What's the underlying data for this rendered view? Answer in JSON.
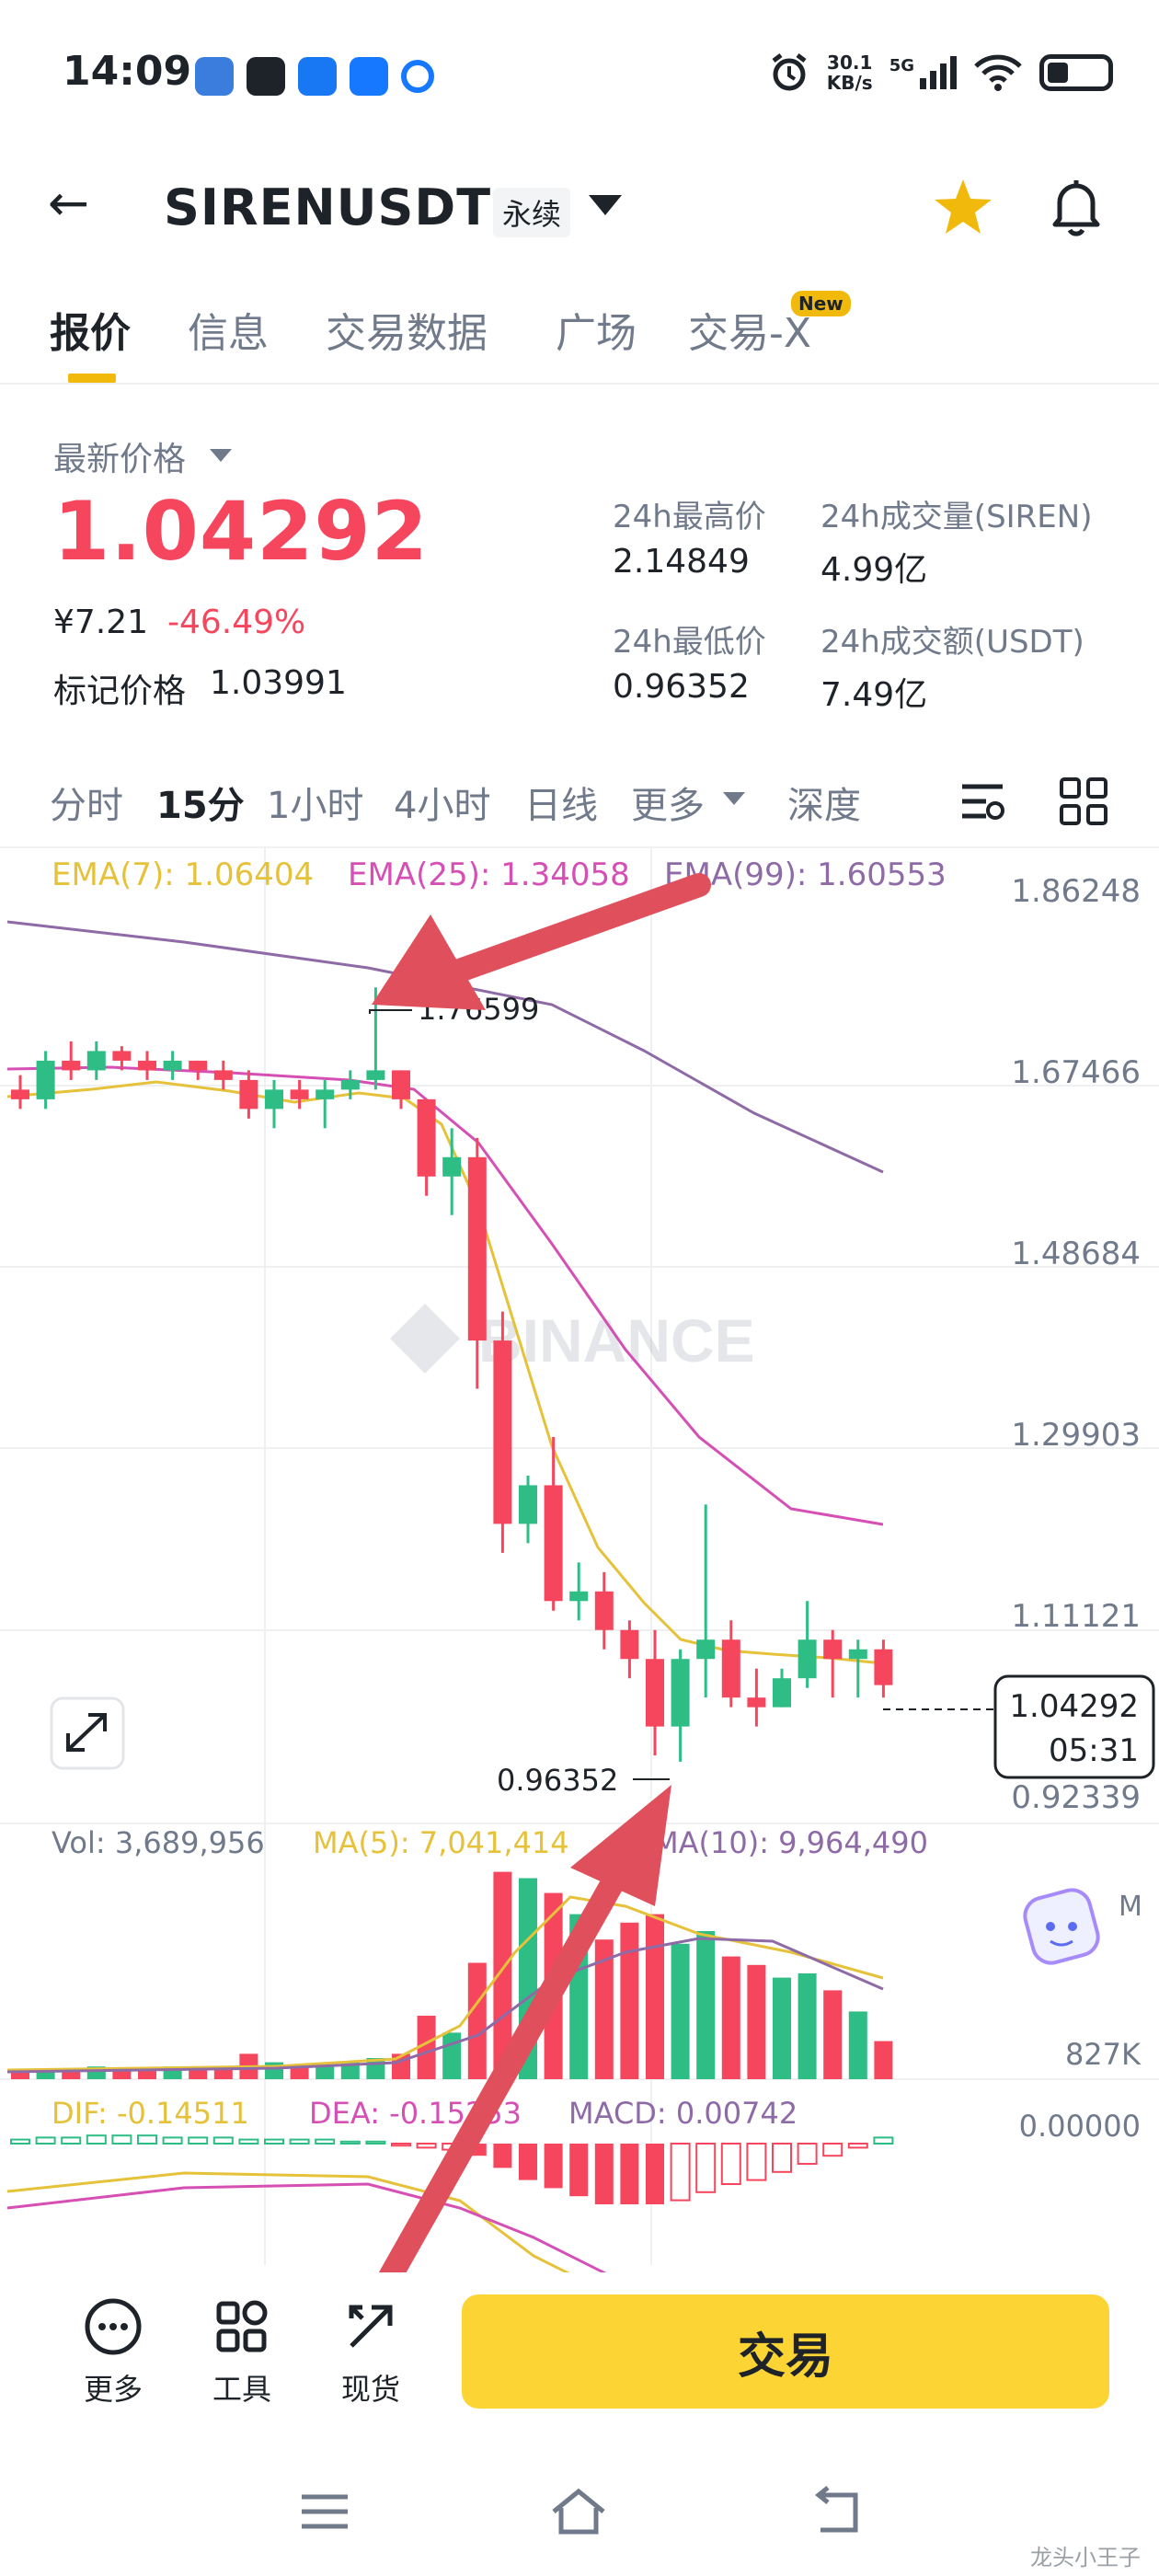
{
  "status_bar": {
    "time": "14:09",
    "net_speed_value": "30.1",
    "net_speed_unit": "KB/s",
    "network": "5G"
  },
  "header": {
    "symbol": "SIRENUSDT",
    "contract_type": "永续"
  },
  "tabs": [
    {
      "label": "报价",
      "active": true
    },
    {
      "label": "信息",
      "active": false
    },
    {
      "label": "交易数据",
      "active": false
    },
    {
      "label": "广场",
      "active": false
    },
    {
      "label": "交易-X",
      "active": false
    }
  ],
  "tab_badge": "New",
  "price": {
    "latest_label": "最新价格",
    "last_price": "1.04292",
    "cny_price": "¥7.21",
    "change_pct": "-46.49%",
    "mark_label": "标记价格",
    "mark_price": "1.03991"
  },
  "stats": {
    "high_label": "24h最高价",
    "high_value": "2.14849",
    "vol_label": "24h成交量(SIREN)",
    "vol_value": "4.99亿",
    "low_label": "24h最低价",
    "low_value": "0.96352",
    "turnover_label": "24h成交额(USDT)",
    "turnover_value": "7.49亿"
  },
  "timeframes": [
    {
      "label": "分时",
      "active": false
    },
    {
      "label": "15分",
      "active": true
    },
    {
      "label": "1小时",
      "active": false
    },
    {
      "label": "4小时",
      "active": false
    },
    {
      "label": "日线",
      "active": false
    },
    {
      "label": "更多",
      "active": false
    },
    {
      "label": "深度",
      "active": false
    }
  ],
  "chart_data": {
    "type": "candlestick",
    "indicators_main": {
      "ema7": "EMA(7): 1.06404",
      "ema25": "EMA(25): 1.34058",
      "ema99": "EMA(99): 1.60553"
    },
    "y_ticks": [
      "1.86248",
      "1.67466",
      "1.48684",
      "1.29903",
      "1.11121",
      "0.92339"
    ],
    "high_marker": "1.76599",
    "low_marker": "0.96352",
    "last_price_tag": "1.04292",
    "countdown": "05:31",
    "watermark": "BINANCE",
    "volume": {
      "label": "Vol: 3,689,956",
      "ma5": "MA(5): 7,041,414",
      "ma10": "MA(10): 9,964,490",
      "axis_label": "827K"
    },
    "macd": {
      "dif": "DIF: -0.14511",
      "dea": "DEA: -0.15253",
      "macd": "MACD: 0.00742",
      "axis_label": "0.00000"
    },
    "candles": [
      {
        "o": 1.66,
        "h": 1.675,
        "l": 1.64,
        "c": 1.65
      },
      {
        "o": 1.65,
        "h": 1.7,
        "l": 1.64,
        "c": 1.69
      },
      {
        "o": 1.69,
        "h": 1.71,
        "l": 1.67,
        "c": 1.68
      },
      {
        "o": 1.68,
        "h": 1.71,
        "l": 1.67,
        "c": 1.7
      },
      {
        "o": 1.7,
        "h": 1.705,
        "l": 1.68,
        "c": 1.69
      },
      {
        "o": 1.69,
        "h": 1.7,
        "l": 1.67,
        "c": 1.68
      },
      {
        "o": 1.68,
        "h": 1.7,
        "l": 1.67,
        "c": 1.69
      },
      {
        "o": 1.69,
        "h": 1.69,
        "l": 1.67,
        "c": 1.68
      },
      {
        "o": 1.68,
        "h": 1.69,
        "l": 1.66,
        "c": 1.67
      },
      {
        "o": 1.67,
        "h": 1.68,
        "l": 1.63,
        "c": 1.64
      },
      {
        "o": 1.64,
        "h": 1.67,
        "l": 1.62,
        "c": 1.66
      },
      {
        "o": 1.66,
        "h": 1.67,
        "l": 1.64,
        "c": 1.65
      },
      {
        "o": 1.65,
        "h": 1.67,
        "l": 1.62,
        "c": 1.66
      },
      {
        "o": 1.66,
        "h": 1.68,
        "l": 1.65,
        "c": 1.67
      },
      {
        "o": 1.67,
        "h": 1.76599,
        "l": 1.66,
        "c": 1.68
      },
      {
        "o": 1.68,
        "h": 1.68,
        "l": 1.64,
        "c": 1.65
      },
      {
        "o": 1.65,
        "h": 1.65,
        "l": 1.55,
        "c": 1.57
      },
      {
        "o": 1.57,
        "h": 1.62,
        "l": 1.53,
        "c": 1.59
      },
      {
        "o": 1.59,
        "h": 1.61,
        "l": 1.35,
        "c": 1.4
      },
      {
        "o": 1.4,
        "h": 1.43,
        "l": 1.18,
        "c": 1.21
      },
      {
        "o": 1.21,
        "h": 1.26,
        "l": 1.19,
        "c": 1.25
      },
      {
        "o": 1.25,
        "h": 1.3,
        "l": 1.12,
        "c": 1.13
      },
      {
        "o": 1.13,
        "h": 1.17,
        "l": 1.11,
        "c": 1.14
      },
      {
        "o": 1.14,
        "h": 1.16,
        "l": 1.08,
        "c": 1.1
      },
      {
        "o": 1.1,
        "h": 1.11,
        "l": 1.05,
        "c": 1.07
      },
      {
        "o": 1.07,
        "h": 1.1,
        "l": 0.97,
        "c": 1.0
      },
      {
        "o": 1.0,
        "h": 1.08,
        "l": 0.96352,
        "c": 1.07
      },
      {
        "o": 1.07,
        "h": 1.23,
        "l": 1.03,
        "c": 1.09
      },
      {
        "o": 1.09,
        "h": 1.11,
        "l": 1.02,
        "c": 1.03
      },
      {
        "o": 1.03,
        "h": 1.06,
        "l": 1.0,
        "c": 1.02
      },
      {
        "o": 1.02,
        "h": 1.06,
        "l": 1.02,
        "c": 1.05
      },
      {
        "o": 1.05,
        "h": 1.13,
        "l": 1.04,
        "c": 1.09
      },
      {
        "o": 1.09,
        "h": 1.1,
        "l": 1.03,
        "c": 1.07
      },
      {
        "o": 1.07,
        "h": 1.09,
        "l": 1.03,
        "c": 1.08
      },
      {
        "o": 1.08,
        "h": 1.09,
        "l": 1.03,
        "c": 1.04292
      }
    ],
    "vol_bars": [
      0.04,
      0.05,
      0.04,
      0.06,
      0.05,
      0.05,
      0.06,
      0.05,
      0.05,
      0.12,
      0.08,
      0.07,
      0.06,
      0.08,
      0.1,
      0.12,
      0.3,
      0.22,
      0.55,
      0.98,
      0.95,
      0.88,
      0.78,
      0.66,
      0.74,
      0.78,
      0.64,
      0.7,
      0.58,
      0.54,
      0.48,
      0.5,
      0.42,
      0.32,
      0.18
    ]
  },
  "bottom_bar": {
    "more": "更多",
    "tools": "工具",
    "spot": "现货",
    "trade": "交易"
  },
  "footer_watermark": "龙头小王子",
  "colors": {
    "up": "#2ebd85",
    "down": "#f6465d",
    "ema7": "#e5c23a",
    "ema25": "#d64fb4",
    "ema99": "#8e6aa6",
    "accent": "#fcd535",
    "annotation_arrow": "#e0505c"
  }
}
